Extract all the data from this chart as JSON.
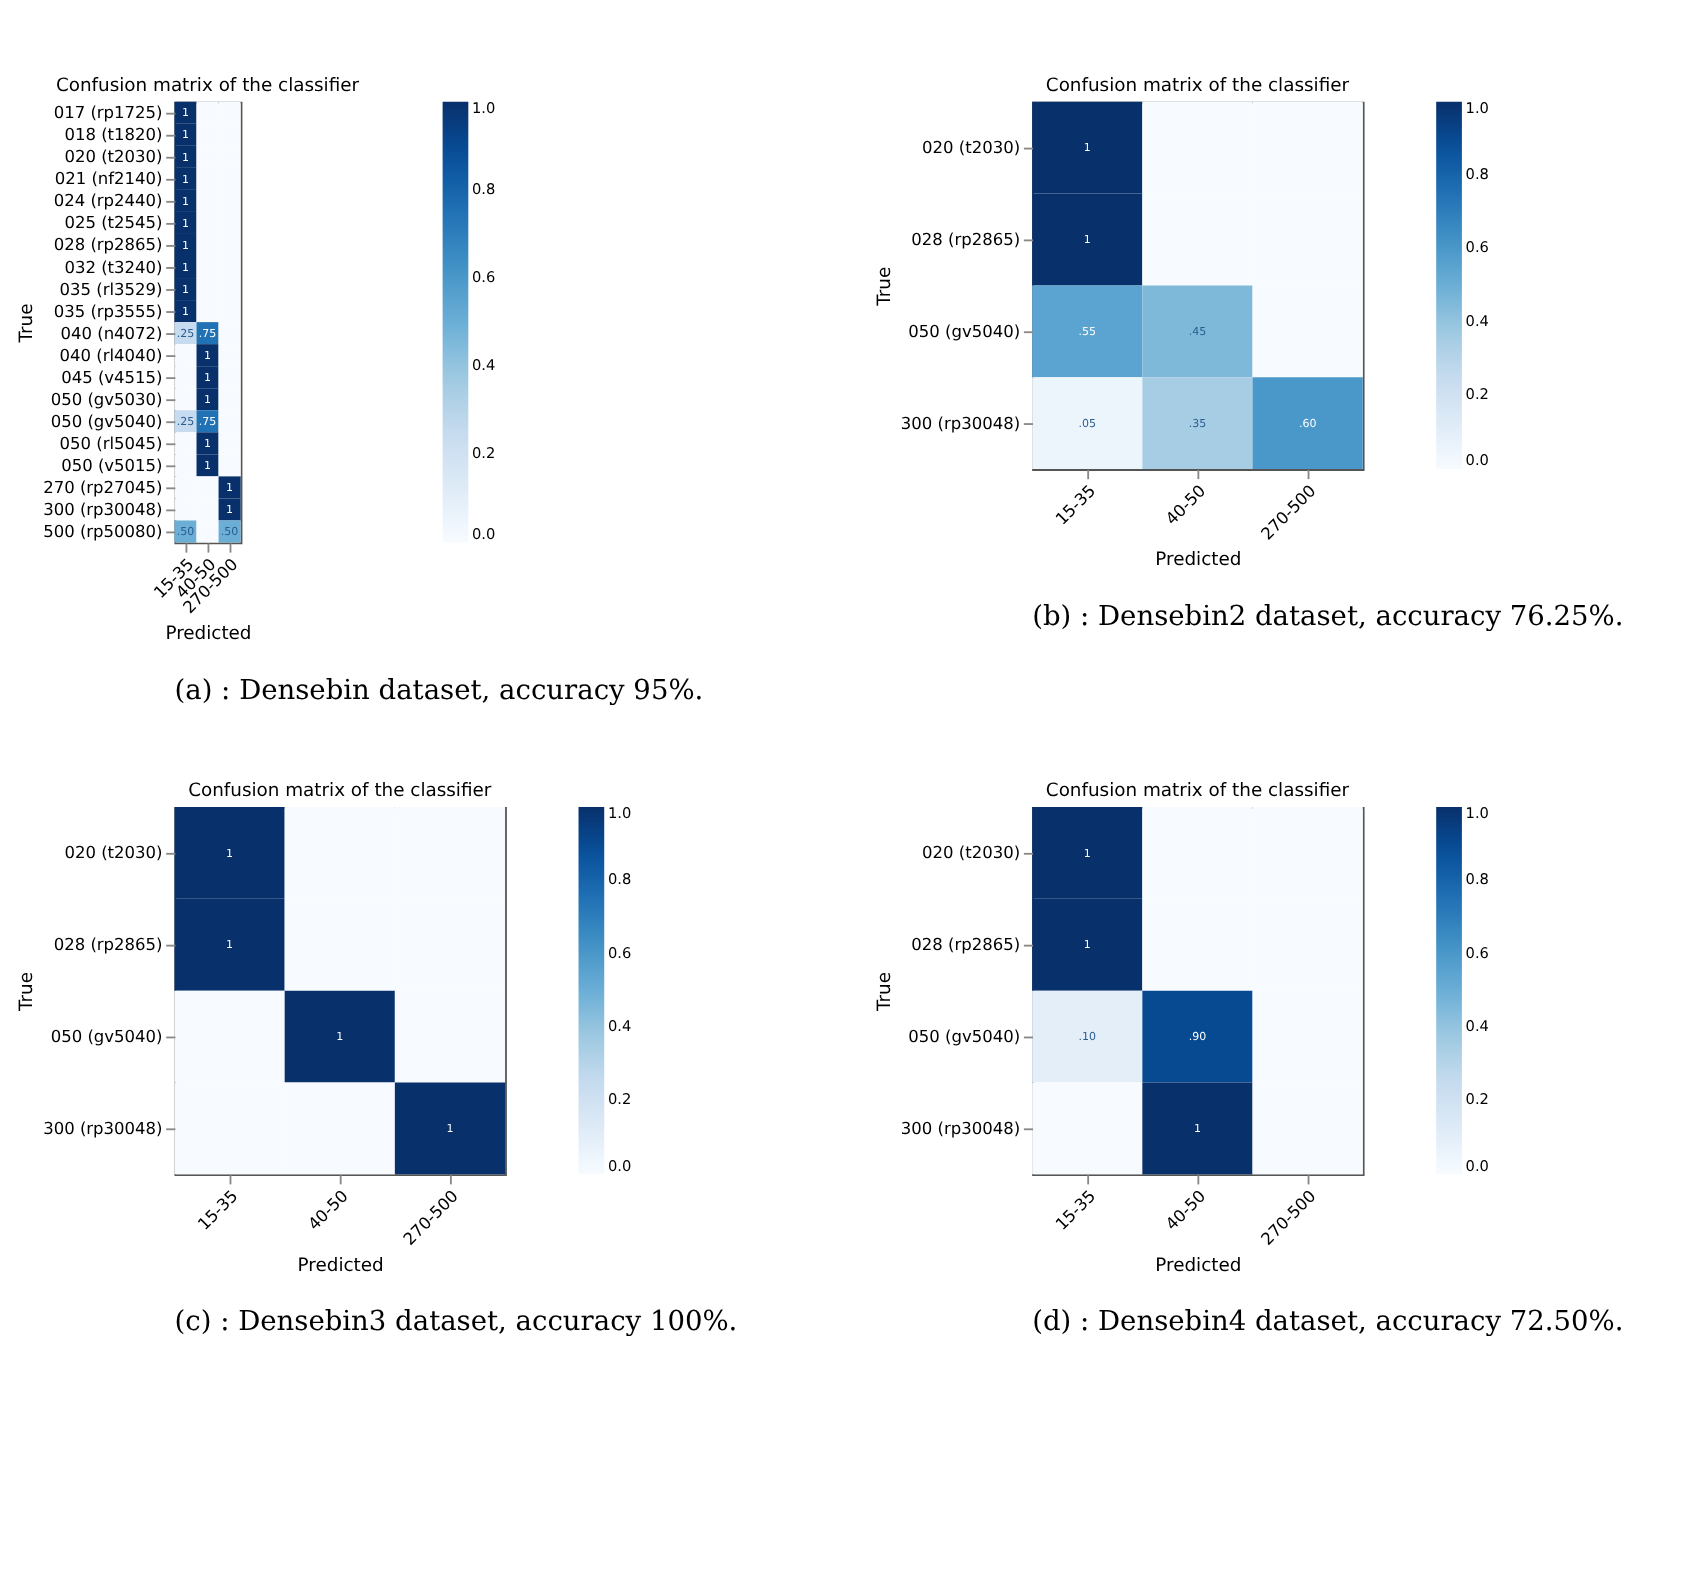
{
  "chart_data": [
    {
      "type": "heatmap",
      "title": "Confusion matrix of the classifier",
      "xlabel": "Predicted",
      "ylabel": "True",
      "categories": [
        "15-35",
        "40-50",
        "270-500"
      ],
      "y_categories": [
        "017 (rp1725)",
        "018 (t1820)",
        "020 (t2030)",
        "021 (nf2140)",
        "024 (rp2440)",
        "025 (t2545)",
        "028 (rp2865)",
        "032 (t3240)",
        "035 (rl3529)",
        "035 (rp3555)",
        "040 (n4072)",
        "040 (rl4040)",
        "045 (v4515)",
        "050 (gv5030)",
        "050 (gv5040)",
        "050 (rl5045)",
        "050 (v5015)",
        "270 (rp27045)",
        "300 (rp30048)",
        "500 (rp50080)"
      ],
      "cells": [
        [
          1,
          0,
          0
        ],
        [
          1,
          0,
          0
        ],
        [
          1,
          0,
          0
        ],
        [
          1,
          0,
          0
        ],
        [
          1,
          0,
          0
        ],
        [
          1,
          0,
          0
        ],
        [
          1,
          0,
          0
        ],
        [
          1,
          0,
          0
        ],
        [
          1,
          0,
          0
        ],
        [
          1,
          0,
          0
        ],
        [
          0.25,
          0.75,
          0
        ],
        [
          0,
          1,
          0
        ],
        [
          0,
          1,
          0
        ],
        [
          0,
          1,
          0
        ],
        [
          0.25,
          0.75,
          0
        ],
        [
          0,
          1,
          0
        ],
        [
          0,
          1,
          0
        ],
        [
          0,
          0,
          1
        ],
        [
          0,
          0,
          1
        ],
        [
          0.5,
          0,
          0.5
        ]
      ],
      "cell_labels": [
        [
          "1",
          null,
          null
        ],
        [
          "1",
          null,
          null
        ],
        [
          "1",
          null,
          null
        ],
        [
          "1",
          null,
          null
        ],
        [
          "1",
          null,
          null
        ],
        [
          "1",
          null,
          null
        ],
        [
          "1",
          null,
          null
        ],
        [
          "1",
          null,
          null
        ],
        [
          "1",
          null,
          null
        ],
        [
          "1",
          null,
          null
        ],
        [
          ".25",
          ".75",
          null
        ],
        [
          null,
          "1",
          null
        ],
        [
          null,
          "1",
          null
        ],
        [
          null,
          "1",
          null
        ],
        [
          ".25",
          ".75",
          null
        ],
        [
          null,
          "1",
          null
        ],
        [
          null,
          "1",
          null
        ],
        [
          null,
          null,
          "1"
        ],
        [
          null,
          null,
          "1"
        ],
        [
          ".50",
          null,
          ".50"
        ]
      ],
      "clim": [
        0,
        1
      ],
      "cticks": [
        {
          "value": 0,
          "label": "0.0"
        },
        {
          "value": 0.2,
          "label": "0.2"
        },
        {
          "value": 0.4,
          "label": "0.4"
        },
        {
          "value": 0.6,
          "label": "0.6"
        },
        {
          "value": 0.8,
          "label": "0.8"
        },
        {
          "value": 1,
          "label": "1.0"
        }
      ],
      "annotations": [
        "(a) : Densebin dataset, accuracy 95%."
      ]
    },
    {
      "type": "heatmap",
      "title": "Confusion matrix of the classifier",
      "xlabel": "Predicted",
      "ylabel": "True",
      "categories": [
        "15-35",
        "40-50",
        "270-500"
      ],
      "y_categories": [
        "020 (t2030)",
        "028 (rp2865)",
        "050 (gv5040)",
        "300 (rp30048)"
      ],
      "cells": [
        [
          1,
          0,
          0
        ],
        [
          1,
          0,
          0
        ],
        [
          0.55,
          0.45,
          0
        ],
        [
          0.05,
          0.35,
          0.6
        ]
      ],
      "cell_labels": [
        [
          "1",
          null,
          null
        ],
        [
          "1",
          null,
          null
        ],
        [
          ".55",
          ".45",
          null
        ],
        [
          ".05",
          ".35",
          ".60"
        ]
      ],
      "clim": [
        0,
        1
      ],
      "cticks": [
        {
          "value": 0,
          "label": "0.0"
        },
        {
          "value": 0.2,
          "label": "0.2"
        },
        {
          "value": 0.4,
          "label": "0.4"
        },
        {
          "value": 0.6,
          "label": "0.6"
        },
        {
          "value": 0.8,
          "label": "0.8"
        },
        {
          "value": 1,
          "label": "1.0"
        }
      ],
      "annotations": [
        "(b) : Densebin2 dataset, accuracy 76.25%."
      ]
    },
    {
      "type": "heatmap",
      "title": "Confusion matrix of the classifier",
      "xlabel": "Predicted",
      "ylabel": "True",
      "categories": [
        "15-35",
        "40-50",
        "270-500"
      ],
      "y_categories": [
        "020 (t2030)",
        "028 (rp2865)",
        "050 (gv5040)",
        "300 (rp30048)"
      ],
      "cells": [
        [
          1,
          0,
          0
        ],
        [
          1,
          0,
          0
        ],
        [
          0,
          1,
          0
        ],
        [
          0,
          0,
          1
        ]
      ],
      "cell_labels": [
        [
          "1",
          null,
          null
        ],
        [
          "1",
          null,
          null
        ],
        [
          null,
          "1",
          null
        ],
        [
          null,
          null,
          "1"
        ]
      ],
      "clim": [
        0,
        1
      ],
      "cticks": [
        {
          "value": 0,
          "label": "0.0"
        },
        {
          "value": 0.2,
          "label": "0.2"
        },
        {
          "value": 0.4,
          "label": "0.4"
        },
        {
          "value": 0.6,
          "label": "0.6"
        },
        {
          "value": 0.8,
          "label": "0.8"
        },
        {
          "value": 1,
          "label": "1.0"
        }
      ],
      "annotations": [
        "(c) : Densebin3 dataset, accuracy 100%."
      ]
    },
    {
      "type": "heatmap",
      "title": "Confusion matrix of the classifier",
      "xlabel": "Predicted",
      "ylabel": "True",
      "categories": [
        "15-35",
        "40-50",
        "270-500"
      ],
      "y_categories": [
        "020 (t2030)",
        "028 (rp2865)",
        "050 (gv5040)",
        "300 (rp30048)"
      ],
      "cells": [
        [
          1,
          0,
          0
        ],
        [
          1,
          0,
          0
        ],
        [
          0.1,
          0.9,
          0
        ],
        [
          0,
          1,
          0
        ]
      ],
      "cell_labels": [
        [
          "1",
          null,
          null
        ],
        [
          "1",
          null,
          null
        ],
        [
          ".10",
          ".90",
          null
        ],
        [
          null,
          "1",
          null
        ]
      ],
      "clim": [
        0,
        1
      ],
      "cticks": [
        {
          "value": 0,
          "label": "0.0"
        },
        {
          "value": 0.2,
          "label": "0.2"
        },
        {
          "value": 0.4,
          "label": "0.4"
        },
        {
          "value": 0.6,
          "label": "0.6"
        },
        {
          "value": 0.8,
          "label": "0.8"
        },
        {
          "value": 1,
          "label": "1.0"
        }
      ],
      "annotations": [
        "(d) : Densebin4 dataset, accuracy 72.50%."
      ]
    }
  ]
}
